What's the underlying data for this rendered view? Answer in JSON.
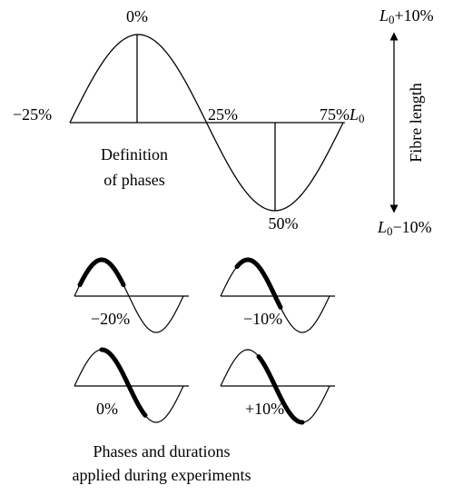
{
  "definition": {
    "phases": {
      "peak": "0%",
      "start": "−25%",
      "middle": "25%",
      "end": "75%",
      "trough": "50%"
    },
    "baseline": {
      "symbol": "L",
      "subscript": "0"
    },
    "caption": [
      "Definition",
      "of phases"
    ]
  },
  "fibre_length": {
    "label": "Fibre length",
    "max": {
      "symbol": "L",
      "subscript": "0",
      "suffix": "+10%"
    },
    "min": {
      "symbol": "L",
      "subscript": "0",
      "suffix": "−10%"
    }
  },
  "experiments": {
    "phases": [
      "−20%",
      "−10%",
      "0%",
      "+10%"
    ],
    "caption": [
      "Phases and durations",
      "applied during experiments"
    ]
  }
}
